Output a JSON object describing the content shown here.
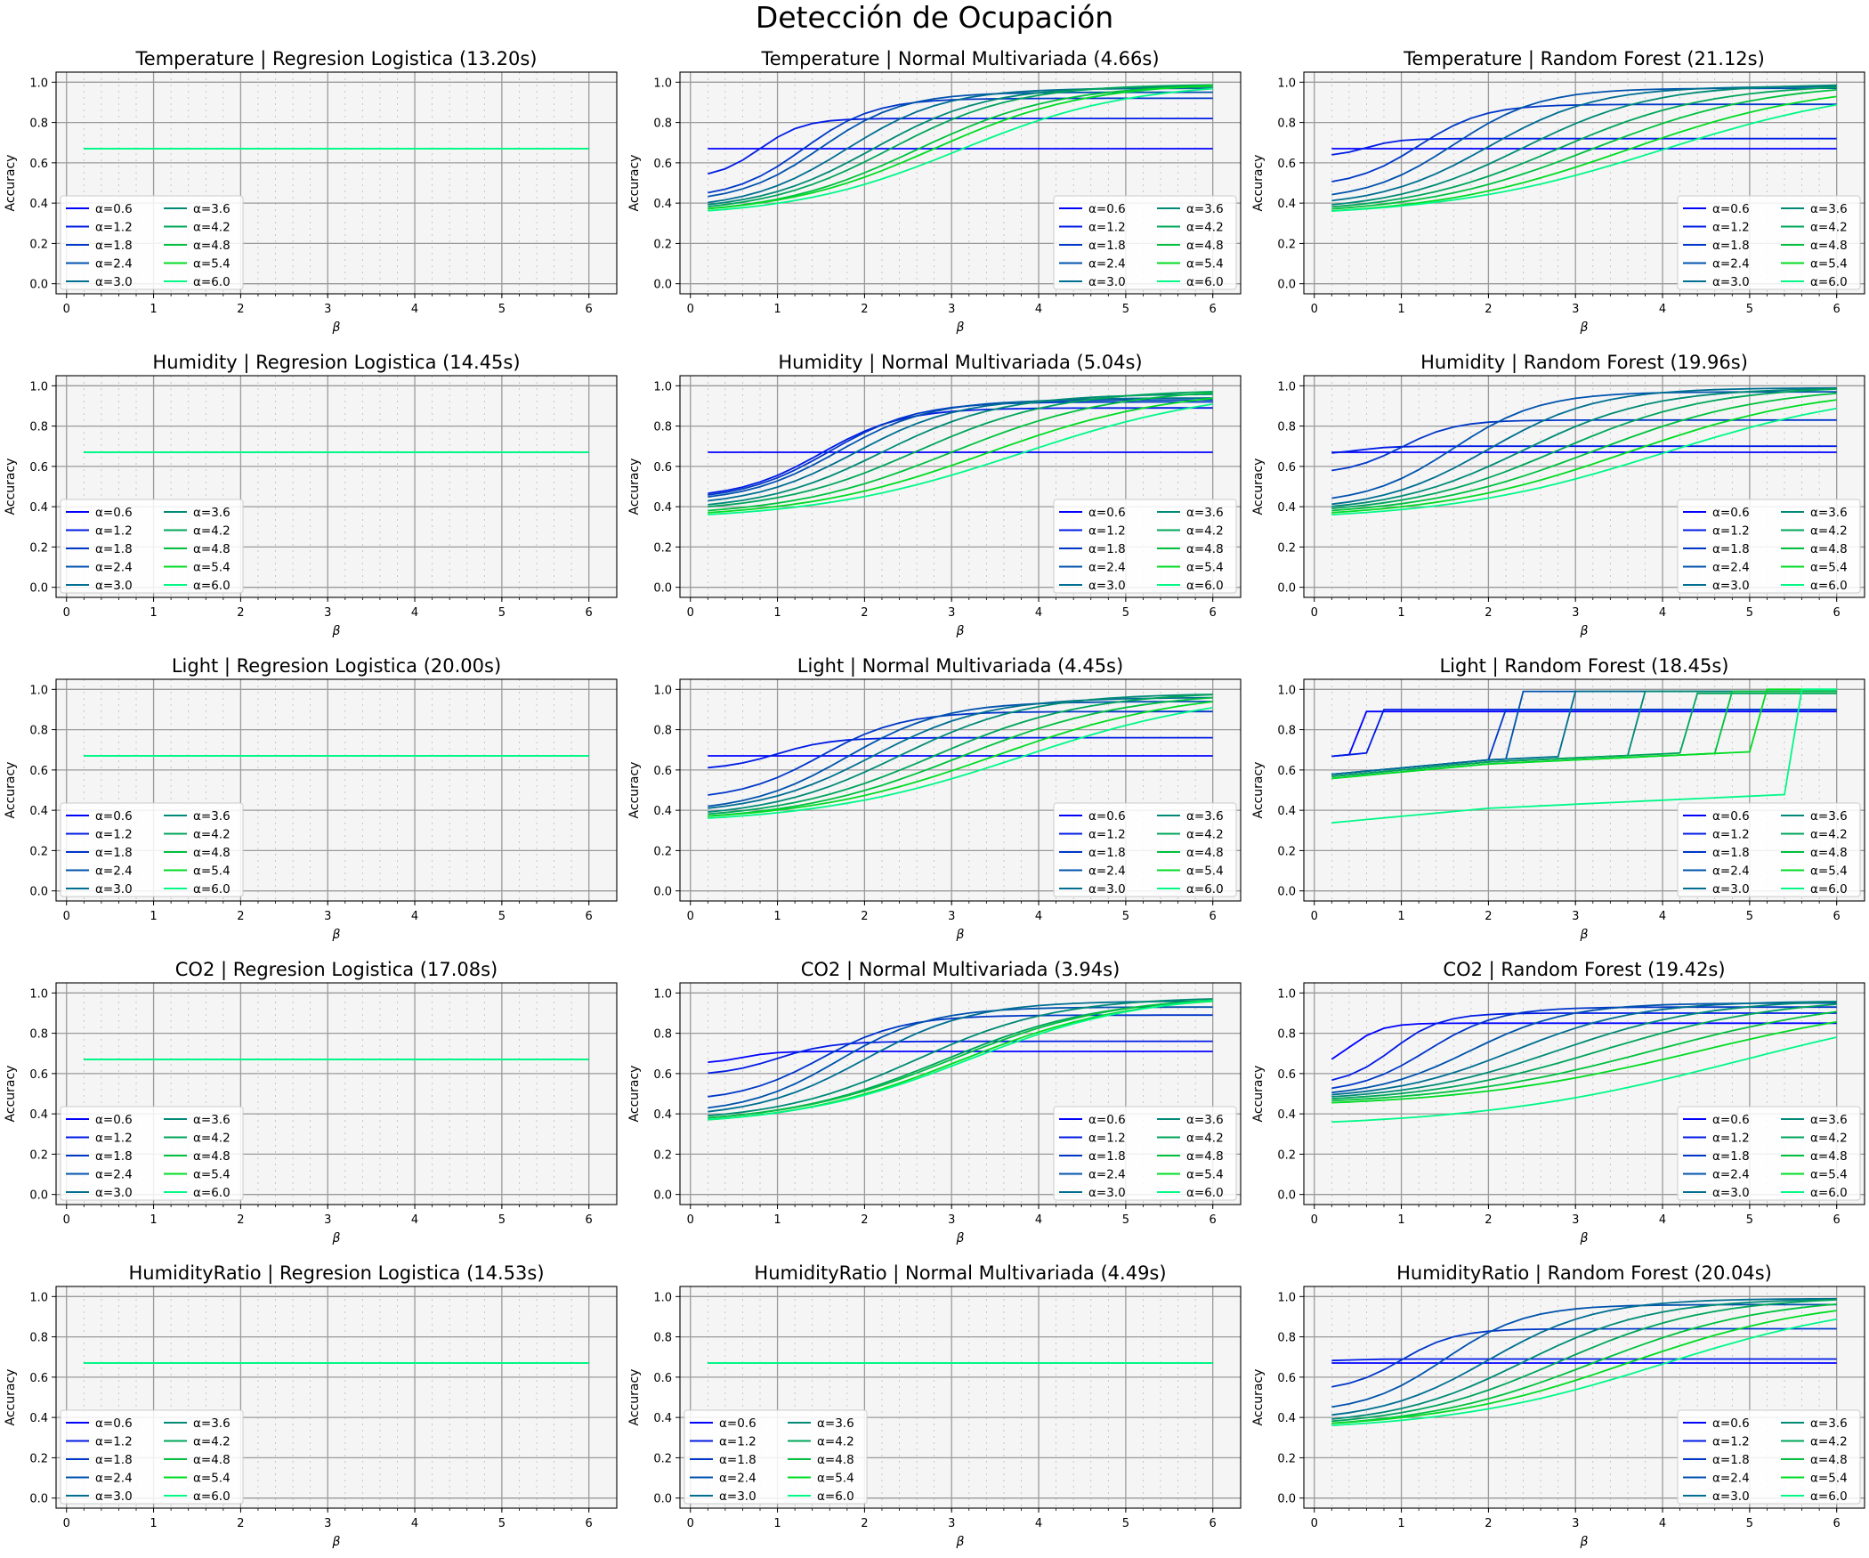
{
  "figure": {
    "title": "Detección de Ocupación"
  },
  "common": {
    "xlabel": "β",
    "ylabel": "Accuracy",
    "x_ticks": [
      "0",
      "1",
      "2",
      "3",
      "4",
      "5",
      "6"
    ],
    "y_ticks": [
      "0.0",
      "0.2",
      "0.4",
      "0.6",
      "0.8",
      "1.0"
    ],
    "xlim": [
      -0.12,
      6.32
    ],
    "ylim": [
      -0.05,
      1.05
    ],
    "legend_labels": [
      "α=0.6",
      "α=1.2",
      "α=1.8",
      "α=2.4",
      "α=3.0",
      "α=3.6",
      "α=4.2",
      "α=4.8",
      "α=5.4",
      "α=6.0"
    ],
    "series_colors": [
      "#0000ff",
      "#001be4",
      "#0037c8",
      "#0052ad",
      "#006e91",
      "#008a75",
      "#00a55a",
      "#00c13e",
      "#00dc23",
      "#00f887"
    ]
  },
  "chart_data": [
    {
      "type": "line",
      "title": "Temperature | Regresion Logistica (13.20s)",
      "legend": "lower-left",
      "curves": []
    },
    {
      "type": "line",
      "title": "Temperature | Normal Multivariada (4.66s)",
      "legend": "lower-right",
      "curves": [
        {
          "flat": 0.67
        },
        {
          "s": [
            0.52,
            0.82,
            0.8
          ]
        },
        {
          "s": [
            0.42,
            0.92,
            1.3
          ]
        },
        {
          "s": [
            0.4,
            0.95,
            1.5
          ]
        },
        {
          "s": [
            0.37,
            0.97,
            1.8
          ]
        },
        {
          "s": [
            0.36,
            0.98,
            2.1
          ]
        },
        {
          "s": [
            0.35,
            0.99,
            2.3
          ]
        },
        {
          "s": [
            0.34,
            0.99,
            2.6
          ]
        },
        {
          "s": [
            0.34,
            1.0,
            2.8
          ]
        },
        {
          "s": [
            0.33,
            1.0,
            3.1
          ]
        }
      ]
    },
    {
      "type": "line",
      "title": "Temperature | Random Forest (21.12s)",
      "legend": "lower-right",
      "curves": [
        {
          "flat": 0.67
        },
        {
          "s": [
            0.63,
            0.72,
            0.6
          ]
        },
        {
          "s": [
            0.48,
            0.89,
            1.2
          ]
        },
        {
          "s": [
            0.41,
            0.97,
            1.6
          ]
        },
        {
          "s": [
            0.38,
            0.98,
            2.0
          ]
        },
        {
          "s": [
            0.36,
            0.99,
            2.4
          ]
        },
        {
          "s": [
            0.35,
            0.99,
            2.8
          ]
        },
        {
          "s": [
            0.34,
            1.0,
            3.2
          ]
        },
        {
          "s": [
            0.33,
            1.0,
            3.6
          ]
        },
        {
          "s": [
            0.33,
            1.0,
            4.0
          ]
        }
      ]
    },
    {
      "type": "line",
      "title": "Humidity | Regresion Logistica (14.45s)",
      "legend": "lower-left",
      "curves": []
    },
    {
      "type": "line",
      "title": "Humidity | Normal Multivariada (5.04s)",
      "legend": "lower-right",
      "curves": [
        {
          "flat": 0.67
        },
        {
          "s": [
            0.44,
            0.89,
            1.5
          ]
        },
        {
          "s": [
            0.43,
            0.92,
            1.6
          ]
        },
        {
          "s": [
            0.42,
            0.93,
            1.7
          ]
        },
        {
          "s": [
            0.4,
            0.94,
            1.9
          ]
        },
        {
          "s": [
            0.38,
            0.96,
            2.2
          ]
        },
        {
          "s": [
            0.37,
            0.98,
            2.6
          ]
        },
        {
          "s": [
            0.35,
            0.99,
            3.0
          ]
        },
        {
          "s": [
            0.34,
            0.99,
            3.4
          ]
        },
        {
          "s": [
            0.33,
            1.0,
            3.8
          ]
        }
      ]
    },
    {
      "type": "line",
      "title": "Humidity | Random Forest (19.96s)",
      "legend": "lower-right",
      "curves": [
        {
          "flat": 0.67
        },
        {
          "s": [
            0.66,
            0.7,
            0.5
          ]
        },
        {
          "s": [
            0.56,
            0.83,
            1.0
          ]
        },
        {
          "s": [
            0.41,
            0.97,
            1.6
          ]
        },
        {
          "s": [
            0.38,
            0.99,
            2.0
          ]
        },
        {
          "s": [
            0.37,
            0.99,
            2.4
          ]
        },
        {
          "s": [
            0.36,
            1.0,
            2.8
          ]
        },
        {
          "s": [
            0.35,
            1.0,
            3.2
          ]
        },
        {
          "s": [
            0.34,
            1.0,
            3.6
          ]
        },
        {
          "s": [
            0.33,
            1.0,
            4.0
          ]
        }
      ]
    },
    {
      "type": "line",
      "title": "Light | Regresion Logistica (20.00s)",
      "legend": "lower-left",
      "curves": []
    },
    {
      "type": "line",
      "title": "Light | Normal Multivariada (4.45s)",
      "legend": "lower-right",
      "curves": [
        {
          "flat": 0.67
        },
        {
          "s": [
            0.6,
            0.76,
            1.0
          ]
        },
        {
          "s": [
            0.45,
            0.89,
            1.5
          ]
        },
        {
          "s": [
            0.39,
            0.94,
            1.8
          ]
        },
        {
          "s": [
            0.38,
            0.96,
            2.1
          ]
        },
        {
          "s": [
            0.36,
            0.98,
            2.4
          ]
        },
        {
          "s": [
            0.35,
            0.99,
            2.8
          ]
        },
        {
          "s": [
            0.34,
            0.99,
            3.1
          ]
        },
        {
          "s": [
            0.34,
            1.0,
            3.5
          ]
        },
        {
          "s": [
            0.33,
            1.0,
            3.8
          ]
        }
      ]
    },
    {
      "type": "line",
      "title": "Light | Random Forest (18.45s)",
      "legend": "lower-right",
      "curves": [
        {
          "steps": [
            0.66,
            0.89
          ],
          "at": 0.6
        },
        {
          "steps": [
            0.66,
            0.9
          ],
          "at": 0.8
        },
        {
          "steps": [
            0.57,
            0.9
          ],
          "at": 2.2
        },
        {
          "steps": [
            0.57,
            0.99
          ],
          "at": 2.4
        },
        {
          "steps": [
            0.57,
            0.99
          ],
          "at": 3.0
        },
        {
          "steps": [
            0.56,
            0.99
          ],
          "at": 3.8
        },
        {
          "steps": [
            0.56,
            0.98
          ],
          "at": 4.4
        },
        {
          "steps": [
            0.55,
            0.99
          ],
          "at": 4.8
        },
        {
          "steps": [
            0.55,
            1.0
          ],
          "at": 5.2
        },
        {
          "steps": [
            0.33,
            1.0
          ],
          "at": 5.6
        }
      ]
    },
    {
      "type": "line",
      "title": "CO2 | Regresion Logistica (17.08s)",
      "legend": "lower-left",
      "curves": []
    },
    {
      "type": "line",
      "title": "CO2 | Normal Multivariada (3.94s)",
      "legend": "lower-right",
      "curves": [
        {
          "s": [
            0.65,
            0.71,
            0.6
          ]
        },
        {
          "s": [
            0.59,
            0.76,
            1.0
          ]
        },
        {
          "s": [
            0.46,
            0.89,
            1.5
          ]
        },
        {
          "s": [
            0.4,
            0.93,
            1.7
          ]
        },
        {
          "s": [
            0.38,
            0.96,
            2.0
          ]
        },
        {
          "s": [
            0.36,
            0.98,
            2.6
          ]
        },
        {
          "s": [
            0.35,
            0.98,
            2.9
          ]
        },
        {
          "s": [
            0.35,
            0.99,
            3.0
          ]
        },
        {
          "s": [
            0.34,
            0.99,
            3.1
          ]
        },
        {
          "s": [
            0.34,
            1.0,
            3.2
          ]
        }
      ]
    },
    {
      "type": "line",
      "title": "CO2 | Random Forest (19.42s)",
      "legend": "lower-right",
      "curves": [
        {
          "s": [
            0.61,
            0.85,
            0.4
          ]
        },
        {
          "s": [
            0.54,
            0.9,
            0.9
          ]
        },
        {
          "s": [
            0.5,
            0.93,
            1.3
          ]
        },
        {
          "s": [
            0.48,
            0.95,
            1.8
          ]
        },
        {
          "s": [
            0.47,
            0.96,
            2.3
          ]
        },
        {
          "s": [
            0.46,
            0.97,
            2.8
          ]
        },
        {
          "s": [
            0.45,
            0.98,
            3.3
          ]
        },
        {
          "s": [
            0.44,
            0.99,
            3.9
          ]
        },
        {
          "s": [
            0.43,
            0.99,
            4.4
          ]
        },
        {
          "s": [
            0.33,
            1.0,
            4.9
          ]
        }
      ]
    },
    {
      "type": "line",
      "title": "HumidityRatio | Regresion Logistica (14.53s)",
      "legend": "lower-left",
      "curves": []
    },
    {
      "type": "line",
      "title": "HumidityRatio | Normal Multivariada (4.49s)",
      "legend": "lower-left",
      "curves": []
    },
    {
      "type": "line",
      "title": "HumidityRatio | Random Forest (20.04s)",
      "legend": "lower-right",
      "curves": [
        {
          "flat": 0.67
        },
        {
          "s": [
            0.68,
            0.69,
            0.4
          ]
        },
        {
          "s": [
            0.53,
            0.84,
            1.0
          ]
        },
        {
          "s": [
            0.42,
            0.96,
            1.5
          ]
        },
        {
          "s": [
            0.38,
            0.99,
            2.0
          ]
        },
        {
          "s": [
            0.36,
            0.99,
            2.4
          ]
        },
        {
          "s": [
            0.35,
            1.0,
            2.8
          ]
        },
        {
          "s": [
            0.34,
            1.0,
            3.2
          ]
        },
        {
          "s": [
            0.34,
            1.0,
            3.6
          ]
        },
        {
          "s": [
            0.33,
            1.0,
            4.0
          ]
        }
      ]
    }
  ]
}
